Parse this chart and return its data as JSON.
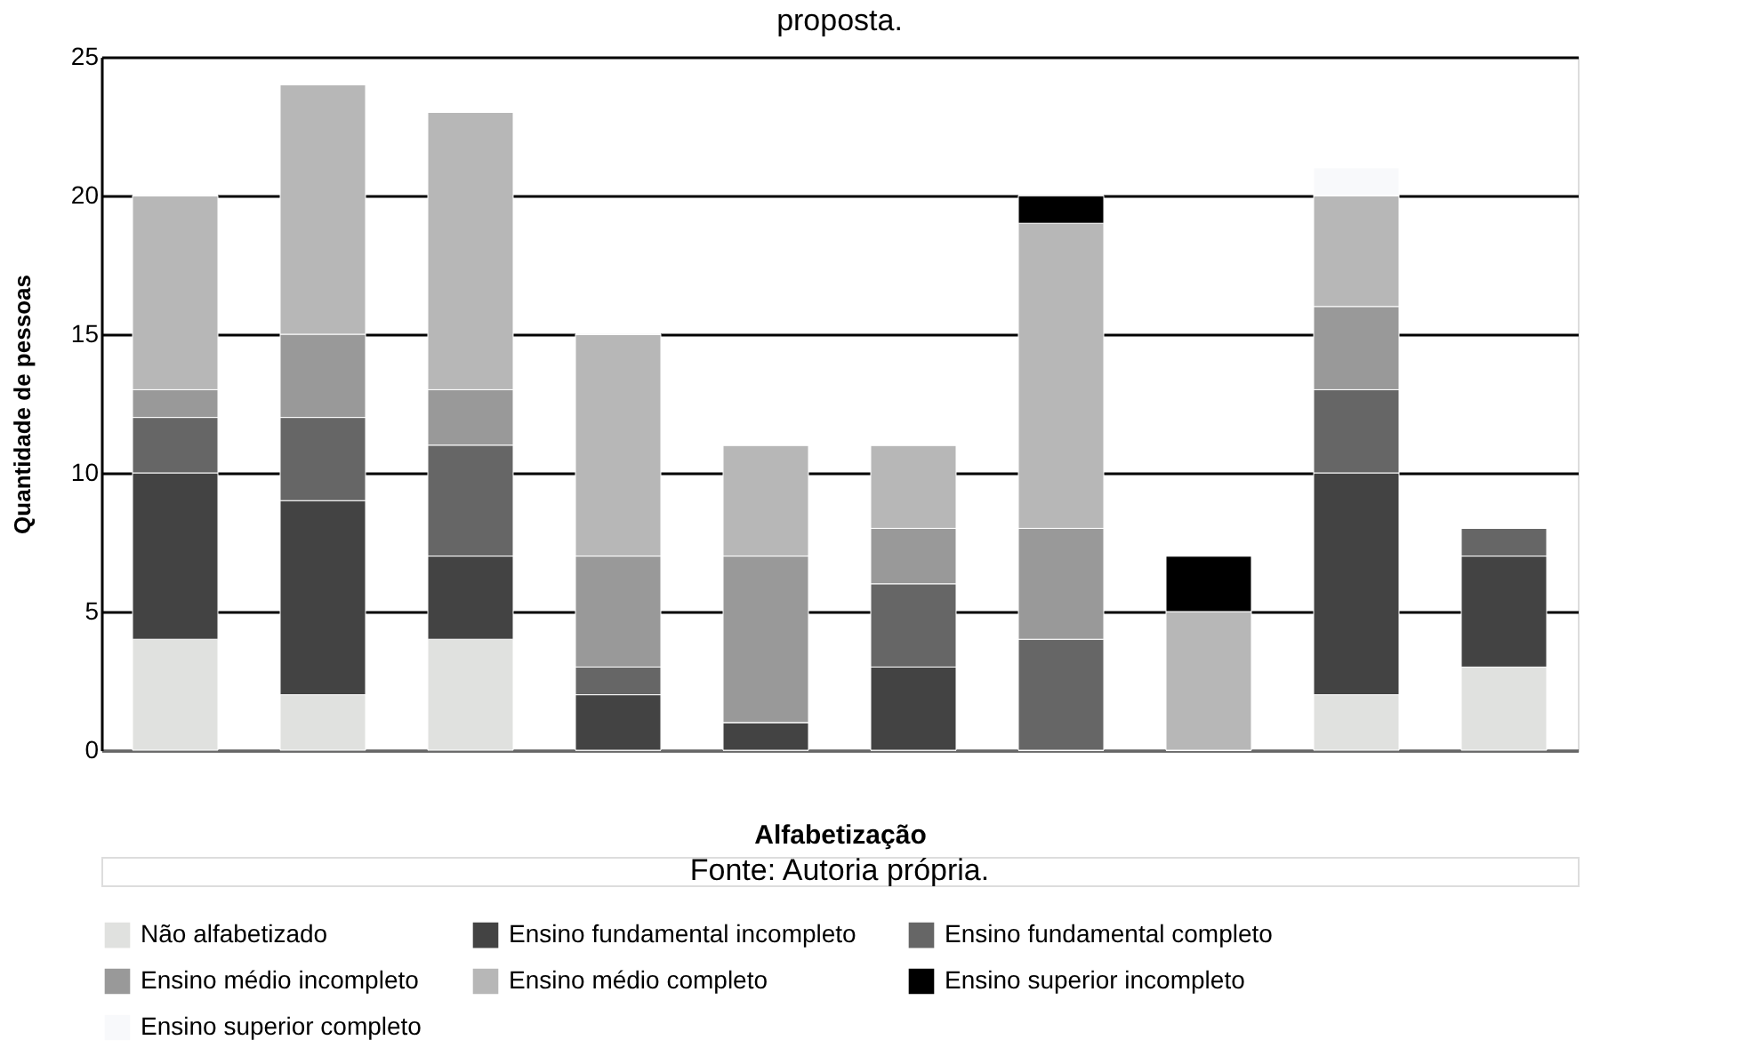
{
  "chart_data": {
    "type": "bar",
    "title": "proposta.",
    "xlabel": "Alfabetização",
    "ylabel": "Quantidade de pessoas",
    "categories": [
      null,
      null,
      null,
      null,
      null,
      null,
      null,
      null,
      null,
      null
    ],
    "stacked": true,
    "series": [
      {
        "name": "Não  alfabetizado",
        "color": "#e0e1df",
        "values": [
          4,
          2,
          4,
          0,
          0,
          0,
          0,
          0,
          2,
          3
        ]
      },
      {
        "name": "Ensino fundamental incompleto",
        "color": "#434343",
        "values": [
          6,
          7,
          3,
          2,
          1,
          3,
          0,
          0,
          8,
          4
        ]
      },
      {
        "name": "Ensino fundamental completo",
        "color": "#666666",
        "values": [
          2,
          3,
          4,
          1,
          0,
          3,
          4,
          0,
          3,
          1
        ]
      },
      {
        "name": "Ensino médio incompleto",
        "color": "#999999",
        "values": [
          1,
          3,
          2,
          4,
          6,
          2,
          4,
          0,
          3,
          0
        ]
      },
      {
        "name": "Ensino médio completo",
        "color": "#b7b7b7",
        "values": [
          7,
          9,
          10,
          8,
          4,
          3,
          11,
          5,
          4,
          0
        ]
      },
      {
        "name": "Ensino superior incompleto",
        "color": "#000000",
        "values": [
          0,
          0,
          0,
          0,
          0,
          0,
          1,
          2,
          0,
          0
        ]
      },
      {
        "name": "Ensino superior completo",
        "color": "#f8f9fb",
        "values": [
          0,
          0,
          0,
          0,
          0,
          0,
          0,
          0,
          1,
          0
        ]
      }
    ],
    "ylim": [
      0,
      25
    ],
    "yticks": [
      0,
      5,
      10,
      15,
      20,
      25
    ],
    "grid": "y",
    "legend": "bottom",
    "tick_labels": "y",
    "annotations": [
      "Fonte: Autoria própria."
    ]
  }
}
